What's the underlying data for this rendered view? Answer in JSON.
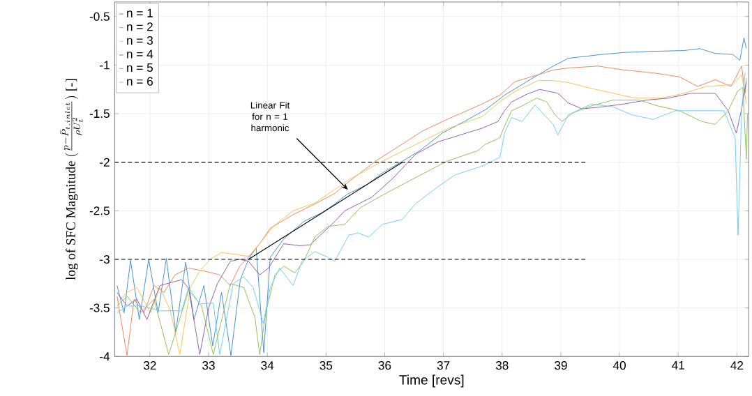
{
  "chart_data": {
    "type": "line",
    "xlabel": "Time [revs]",
    "ylabel": "\\text{log of SFC Magnitude } (\\frac{p - \\bar{P}_{t,inlet}}{\\rho U_t^2}) \\text{ [-]}",
    "xlim": [
      31.4,
      42.2
    ],
    "ylim": [
      -4,
      -0.35
    ],
    "xticks": [
      32,
      33,
      34,
      35,
      36,
      37,
      38,
      39,
      40,
      41,
      42
    ],
    "yticks": [
      -4,
      -3.5,
      -3,
      -2.5,
      -2,
      -1.5,
      -1,
      -0.5
    ],
    "grid": true,
    "legend": "top left",
    "line_style": "solid",
    "annotations": [
      "Linear Fit for n = 1 harmonic"
    ],
    "series": [
      {
        "name": "n = 1",
        "color": "#3d8fd1",
        "x": [
          31.44,
          31.56,
          31.67,
          31.82,
          31.98,
          32.14,
          32.28,
          32.44,
          32.61,
          32.75,
          32.92,
          33.07,
          33.22,
          33.38,
          33.54,
          33.68,
          33.81,
          33.94,
          34.05,
          34.28,
          34.62,
          34.93,
          35.15,
          35.36,
          35.7,
          35.96,
          36.3,
          36.6,
          36.98,
          37.36,
          37.74,
          38.04,
          38.42,
          38.87,
          39.13,
          39.7,
          40.08,
          40.46,
          41.1,
          41.37,
          41.63,
          41.93,
          42.05,
          42.12,
          42.16
        ],
        "values": [
          -3.27,
          -3.55,
          -3.01,
          -3.62,
          -3.0,
          -3.55,
          -2.99,
          -3.75,
          -3.03,
          -3.62,
          -3.27,
          -3.89,
          -3.34,
          -3.99,
          -3.21,
          -3.0,
          -2.88,
          -3.96,
          -2.98,
          -2.79,
          -2.61,
          -2.52,
          -2.43,
          -2.33,
          -2.23,
          -2.11,
          -1.99,
          -1.88,
          -1.7,
          -1.58,
          -1.45,
          -1.31,
          -1.17,
          -1.01,
          -0.93,
          -0.89,
          -0.87,
          -0.86,
          -0.85,
          -0.83,
          -0.88,
          -0.89,
          -0.95,
          -0.72,
          -0.83
        ]
      },
      {
        "name": "n = 2",
        "color": "#e8845a",
        "x": [
          31.44,
          31.61,
          31.73,
          31.9,
          32.07,
          32.24,
          32.43,
          32.66,
          32.92,
          33.19,
          33.37,
          33.53,
          33.68,
          33.87,
          34.05,
          34.44,
          34.81,
          35.15,
          35.39,
          35.84,
          36.23,
          36.64,
          37.06,
          37.66,
          37.96,
          38.22,
          38.61,
          38.87,
          39.13,
          39.63,
          40.08,
          40.57,
          41.02,
          41.33,
          41.63,
          41.9,
          42.08,
          42.14,
          42.16
        ],
        "values": [
          -3.38,
          -3.99,
          -3.41,
          -3.55,
          -3.27,
          -3.34,
          -3.16,
          -3.09,
          -3.12,
          -3.16,
          -3.27,
          -3.07,
          -2.98,
          -2.84,
          -2.68,
          -2.54,
          -2.43,
          -2.32,
          -2.2,
          -1.99,
          -1.84,
          -1.68,
          -1.56,
          -1.4,
          -1.31,
          -1.17,
          -1.1,
          -1.05,
          -1.03,
          -1.01,
          -1.05,
          -1.08,
          -1.12,
          -1.22,
          -1.15,
          -1.22,
          -1.01,
          -1.29,
          -1.13
        ]
      },
      {
        "name": "n = 3",
        "color": "#f2c24f",
        "x": [
          31.44,
          31.61,
          31.78,
          32.01,
          32.17,
          32.35,
          32.51,
          32.69,
          32.85,
          33.03,
          33.22,
          33.45,
          33.68,
          33.87,
          34.1,
          34.44,
          34.81,
          35.15,
          35.39,
          35.96,
          36.52,
          37.09,
          37.66,
          38.0,
          38.22,
          38.61,
          38.87,
          39.13,
          39.52,
          39.89,
          40.27,
          40.72,
          41.1,
          41.48,
          41.93,
          42.08,
          42.16
        ],
        "values": [
          -3.45,
          -3.34,
          -3.29,
          -3.55,
          -3.29,
          -3.53,
          -3.98,
          -3.29,
          -3.12,
          -3.0,
          -2.93,
          -2.95,
          -2.97,
          -2.84,
          -2.66,
          -2.5,
          -2.42,
          -2.28,
          -2.18,
          -1.99,
          -1.82,
          -1.65,
          -1.53,
          -1.36,
          -1.27,
          -1.16,
          -1.16,
          -1.18,
          -1.24,
          -1.29,
          -1.34,
          -1.34,
          -1.29,
          -1.22,
          -1.2,
          -1.1,
          -1.4
        ]
      },
      {
        "name": "n = 4",
        "color": "#9656a8",
        "x": [
          31.44,
          31.61,
          31.78,
          31.95,
          32.17,
          32.35,
          32.54,
          32.66,
          32.85,
          33.0,
          33.15,
          33.37,
          33.53,
          33.68,
          33.87,
          34.02,
          34.28,
          34.55,
          34.73,
          35.15,
          35.32,
          35.78,
          36.15,
          36.52,
          36.91,
          37.28,
          37.66,
          37.93,
          38.04,
          38.16,
          38.42,
          38.64,
          38.95,
          39.13,
          39.36,
          39.7,
          40.08,
          40.46,
          40.83,
          41.22,
          41.63,
          41.85,
          41.99,
          42.08,
          42.16
        ],
        "values": [
          -3.34,
          -3.48,
          -3.41,
          -3.62,
          -3.27,
          -3.24,
          -3.21,
          -3.3,
          -3.98,
          -3.5,
          -3.25,
          -3.02,
          -3.0,
          -3.02,
          -3.16,
          -3.09,
          -2.84,
          -2.86,
          -2.85,
          -2.61,
          -2.5,
          -2.36,
          -2.16,
          -1.92,
          -1.79,
          -1.72,
          -1.65,
          -1.58,
          -1.47,
          -1.38,
          -1.3,
          -1.25,
          -1.29,
          -1.39,
          -1.45,
          -1.43,
          -1.4,
          -1.36,
          -1.34,
          -1.29,
          -1.29,
          -1.47,
          -1.7,
          -1.45,
          -1.17
        ]
      },
      {
        "name": "n = 5",
        "color": "#8cbf52",
        "x": [
          31.44,
          31.61,
          31.84,
          32.07,
          32.32,
          32.66,
          32.88,
          33.08,
          33.26,
          33.37,
          33.6,
          33.79,
          33.87,
          33.98,
          34.13,
          34.28,
          34.47,
          34.62,
          34.81,
          35.04,
          35.32,
          35.58,
          35.96,
          36.52,
          37.06,
          37.59,
          37.7,
          37.96,
          38.04,
          38.16,
          38.34,
          38.59,
          38.76,
          38.9,
          39.02,
          39.21,
          39.52,
          39.89,
          40.34,
          40.65,
          41.02,
          41.4,
          41.63,
          41.85,
          42.01,
          42.1,
          42.16,
          42.18
        ],
        "values": [
          -3.48,
          -3.38,
          -3.55,
          -3.41,
          -3.98,
          -3.32,
          -3.48,
          -3.98,
          -3.53,
          -3.25,
          -3.29,
          -3.6,
          -3.98,
          -3.53,
          -3.16,
          -3.07,
          -3.14,
          -3.02,
          -2.77,
          -2.66,
          -2.64,
          -2.47,
          -2.34,
          -2.16,
          -1.99,
          -1.88,
          -1.82,
          -1.75,
          -1.63,
          -1.47,
          -1.42,
          -1.34,
          -1.38,
          -1.51,
          -1.58,
          -1.49,
          -1.42,
          -1.36,
          -1.36,
          -1.42,
          -1.47,
          -1.58,
          -1.61,
          -1.47,
          -1.27,
          -1.23,
          -1.97,
          -1.51
        ]
      },
      {
        "name": "n = 6",
        "color": "#6ccdf2",
        "x": [
          31.44,
          31.61,
          31.86,
          32.17,
          32.54,
          32.66,
          32.85,
          33.08,
          33.19,
          33.42,
          33.6,
          33.76,
          33.93,
          34.05,
          34.21,
          34.44,
          34.59,
          34.81,
          35.04,
          35.15,
          35.39,
          35.55,
          35.73,
          35.96,
          36.3,
          36.52,
          36.91,
          37.2,
          37.66,
          37.96,
          38.0,
          38.04,
          38.16,
          38.34,
          38.56,
          38.87,
          38.95,
          39.13,
          39.52,
          39.89,
          40.2,
          40.57,
          40.95,
          41.78,
          41.97,
          42.02,
          42.08,
          42.14
        ],
        "values": [
          -3.55,
          -3.48,
          -3.48,
          -3.53,
          -3.53,
          -3.29,
          -3.46,
          -3.45,
          -3.98,
          -3.25,
          -3.18,
          -3.29,
          -3.66,
          -3.29,
          -3.09,
          -3.27,
          -3.02,
          -2.92,
          -2.98,
          -3.02,
          -2.75,
          -2.73,
          -2.77,
          -2.64,
          -2.59,
          -2.43,
          -2.25,
          -2.13,
          -2.04,
          -1.95,
          -1.84,
          -1.7,
          -1.54,
          -1.58,
          -1.41,
          -1.61,
          -1.72,
          -1.51,
          -1.4,
          -1.43,
          -1.51,
          -1.56,
          -1.47,
          -1.47,
          -1.75,
          -2.75,
          -1.47,
          -1.08
        ]
      },
      {
        "type": "line",
        "color": "#000000",
        "line_style": "dashed",
        "x": [
          31.4,
          39.45
        ],
        "values": [
          -2,
          -2
        ]
      },
      {
        "type": "line",
        "color": "#000000",
        "line_style": "dashed",
        "x": [
          31.4,
          39.45
        ],
        "values": [
          -3,
          -3
        ]
      },
      {
        "type": "line",
        "color": "#000000",
        "x": [
          33.68,
          36.3
        ],
        "values": [
          -3.0,
          -2.0
        ]
      }
    ]
  }
}
